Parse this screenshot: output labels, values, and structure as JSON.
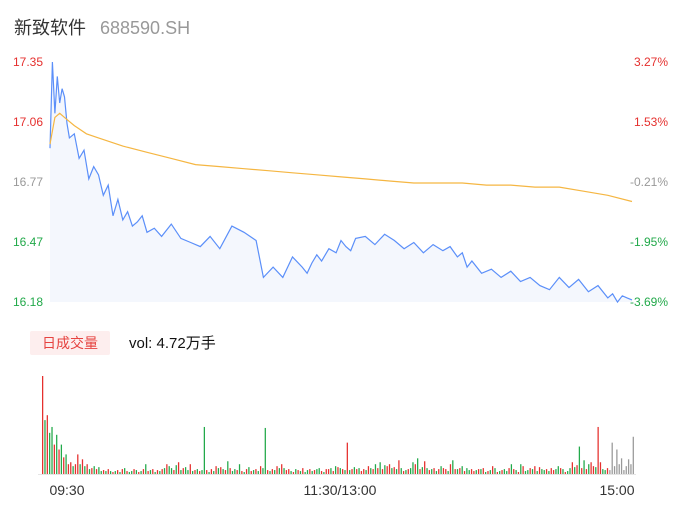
{
  "header": {
    "name": "新致软件",
    "code": "688590.SH"
  },
  "volume_header": {
    "label": "日成交量",
    "value_text": "vol: 4.72万手"
  },
  "colors": {
    "price_line": "#5b8ff9",
    "avg_line": "#f5b642",
    "up": "#e5302e",
    "down": "#22a94a",
    "neutral": "#999999"
  },
  "chart_data": [
    {
      "type": "line",
      "name": "intraday-price",
      "ylim": [
        16.18,
        17.35
      ],
      "y_ticks_left": [
        "17.35",
        "17.06",
        "16.77",
        "16.47",
        "16.18"
      ],
      "y_ticks_right": [
        "3.27%",
        "1.53%",
        "-0.21%",
        "-1.95%",
        "-3.69%"
      ],
      "x_ticks": [
        "09:30",
        "11:30/13:00",
        "15:00"
      ],
      "x_count": 241,
      "series": [
        {
          "role": "price",
          "x": [
            0,
            1,
            2,
            3,
            4,
            5,
            6,
            7,
            8,
            10,
            12,
            14,
            16,
            18,
            20,
            22,
            24,
            26,
            28,
            30,
            32,
            34,
            36,
            38,
            40,
            43,
            46,
            50,
            54,
            58,
            62,
            66,
            70,
            75,
            80,
            85,
            88,
            92,
            96,
            100,
            104,
            106,
            108,
            110,
            112,
            115,
            118,
            120,
            122,
            124,
            126,
            130,
            134,
            138,
            142,
            146,
            150,
            154,
            158,
            162,
            165,
            168,
            170,
            172,
            174,
            178,
            182,
            186,
            190,
            194,
            198,
            202,
            206,
            210,
            214,
            218,
            222,
            226,
            230,
            232,
            234,
            236,
            238,
            240
          ],
          "values": [
            16.93,
            17.35,
            17.1,
            17.28,
            17.15,
            17.22,
            17.18,
            17.05,
            16.98,
            17.0,
            16.88,
            16.92,
            16.78,
            16.84,
            16.8,
            16.7,
            16.75,
            16.6,
            16.68,
            16.58,
            16.62,
            16.55,
            16.57,
            16.6,
            16.52,
            16.54,
            16.5,
            16.56,
            16.49,
            16.47,
            16.45,
            16.5,
            16.44,
            16.55,
            16.52,
            16.48,
            16.3,
            16.35,
            16.3,
            16.4,
            16.35,
            16.32,
            16.37,
            16.41,
            16.38,
            16.44,
            16.42,
            16.48,
            16.45,
            16.43,
            16.49,
            16.5,
            16.46,
            16.51,
            16.48,
            16.44,
            16.47,
            16.42,
            16.46,
            16.43,
            16.45,
            16.4,
            16.42,
            16.35,
            16.38,
            16.32,
            16.34,
            16.3,
            16.33,
            16.28,
            16.3,
            16.26,
            16.24,
            16.3,
            16.25,
            16.29,
            16.23,
            16.26,
            16.2,
            16.22,
            16.18,
            16.21,
            16.2,
            16.19
          ]
        },
        {
          "role": "average",
          "x": [
            0,
            2,
            4,
            6,
            10,
            15,
            20,
            30,
            40,
            50,
            60,
            70,
            80,
            90,
            100,
            110,
            120,
            130,
            140,
            150,
            160,
            170,
            180,
            190,
            200,
            210,
            220,
            230,
            240
          ],
          "values": [
            16.95,
            17.08,
            17.1,
            17.08,
            17.04,
            17.0,
            16.98,
            16.94,
            16.91,
            16.88,
            16.85,
            16.84,
            16.83,
            16.82,
            16.81,
            16.8,
            16.79,
            16.78,
            16.77,
            16.76,
            16.76,
            16.76,
            16.75,
            16.75,
            16.74,
            16.74,
            16.72,
            16.7,
            16.67
          ]
        }
      ]
    },
    {
      "type": "bar",
      "name": "volume",
      "x_ticks": [
        "09:30",
        "11:30/13:00",
        "15:00"
      ],
      "values": [
        100,
        55,
        60,
        42,
        48,
        30,
        40,
        25,
        30,
        17,
        20,
        10,
        12,
        8,
        10,
        20,
        10,
        15,
        8,
        10,
        5,
        6,
        8,
        5,
        7,
        3,
        4,
        3,
        5,
        3,
        2,
        3,
        4,
        2,
        5,
        6,
        3,
        2,
        3,
        5,
        4,
        2,
        3,
        5,
        10,
        3,
        4,
        5,
        2,
        4,
        3,
        5,
        6,
        10,
        8,
        6,
        4,
        9,
        12,
        4,
        6,
        7,
        4,
        10,
        3,
        4,
        5,
        3,
        4,
        48,
        4,
        2,
        5,
        3,
        8,
        6,
        7,
        5,
        4,
        13,
        6,
        3,
        5,
        4,
        10,
        3,
        2,
        5,
        7,
        3,
        4,
        5,
        3,
        8,
        6,
        47,
        4,
        3,
        5,
        4,
        8,
        6,
        10,
        6,
        4,
        5,
        3,
        2,
        5,
        4,
        3,
        6,
        2,
        4,
        5,
        3,
        4,
        5,
        6,
        3,
        2,
        5,
        5,
        6,
        3,
        8,
        7,
        6,
        5,
        4,
        32,
        4,
        5,
        7,
        5,
        6,
        3,
        5,
        4,
        8,
        6,
        5,
        10,
        6,
        12,
        5,
        9,
        8,
        10,
        6,
        7,
        5,
        14,
        6,
        3,
        4,
        5,
        6,
        12,
        10,
        16,
        5,
        7,
        13,
        6,
        4,
        5,
        6,
        3,
        5,
        8,
        6,
        5,
        3,
        10,
        14,
        5,
        5,
        6,
        8,
        3,
        6,
        4,
        5,
        3,
        4,
        5,
        5,
        6,
        2,
        3,
        4,
        8,
        6,
        2,
        3,
        4,
        5,
        3,
        6,
        10,
        5,
        4,
        2,
        10,
        8,
        3,
        4,
        6,
        5,
        8,
        3,
        7,
        5,
        4,
        5,
        3,
        6,
        4,
        5,
        8,
        6,
        5,
        2,
        3,
        6,
        12,
        7,
        9,
        28,
        6,
        14,
        5,
        10,
        12,
        8,
        7,
        48,
        12,
        5,
        4,
        6,
        4,
        32,
        8,
        25,
        10,
        16,
        4,
        8,
        15,
        10,
        38
      ],
      "colors": [
        "up",
        "down",
        "up",
        "down",
        "down",
        "up",
        "down",
        "up",
        "down",
        "up",
        "down",
        "up",
        "up",
        "down",
        "up",
        "up",
        "down",
        "up",
        "down",
        "up",
        "down",
        "up",
        "down",
        "up",
        "down",
        "down",
        "up",
        "down",
        "up",
        "down",
        "up",
        "down",
        "up",
        "down",
        "up",
        "down",
        "up",
        "down",
        "down",
        "up",
        "down",
        "up",
        "down",
        "up",
        "down",
        "up",
        "down",
        "up",
        "down",
        "up",
        "down",
        "up",
        "down",
        "up",
        "down",
        "down",
        "up",
        "down",
        "up",
        "down",
        "up",
        "down",
        "down",
        "up",
        "down",
        "up",
        "down",
        "up",
        "down",
        "down",
        "up",
        "down",
        "up",
        "down",
        "up",
        "down",
        "up",
        "down",
        "up",
        "down",
        "up",
        "down",
        "down",
        "up",
        "down",
        "up",
        "down",
        "up",
        "down",
        "up",
        "down",
        "up",
        "down",
        "up",
        "down",
        "down",
        "up",
        "down",
        "up",
        "down",
        "up",
        "down",
        "up",
        "down",
        "up",
        "up",
        "down",
        "up",
        "down",
        "up",
        "down",
        "up",
        "down",
        "down",
        "up",
        "down",
        "up",
        "down",
        "down",
        "up",
        "down",
        "up",
        "up",
        "down",
        "up",
        "down",
        "up",
        "down",
        "up",
        "down",
        "up",
        "down",
        "up",
        "down",
        "up",
        "down",
        "up",
        "up",
        "down",
        "up",
        "down",
        "up",
        "down",
        "up",
        "down",
        "up",
        "down",
        "up",
        "up",
        "down",
        "up",
        "down",
        "up",
        "down",
        "up",
        "down",
        "up",
        "down",
        "down",
        "up",
        "down",
        "up",
        "down",
        "up",
        "down",
        "up",
        "down",
        "up",
        "down",
        "up",
        "down",
        "up",
        "up",
        "down",
        "up",
        "down",
        "up",
        "down",
        "up",
        "down",
        "up",
        "down",
        "down",
        "up",
        "up",
        "down",
        "up",
        "down",
        "up",
        "down",
        "up",
        "down",
        "up",
        "down",
        "up",
        "down",
        "up",
        "down",
        "down",
        "up",
        "down",
        "up",
        "down",
        "up",
        "down",
        "up",
        "down",
        "down",
        "up",
        "down",
        "up",
        "down",
        "up",
        "down",
        "down",
        "up",
        "down",
        "up",
        "up",
        "down",
        "down",
        "up",
        "down",
        "up",
        "down",
        "down",
        "up",
        "down",
        "up",
        "down",
        "up",
        "down",
        "up",
        "down",
        "up",
        "up",
        "down",
        "up",
        "up",
        "down",
        "down",
        "up",
        "neutral"
      ]
    }
  ]
}
